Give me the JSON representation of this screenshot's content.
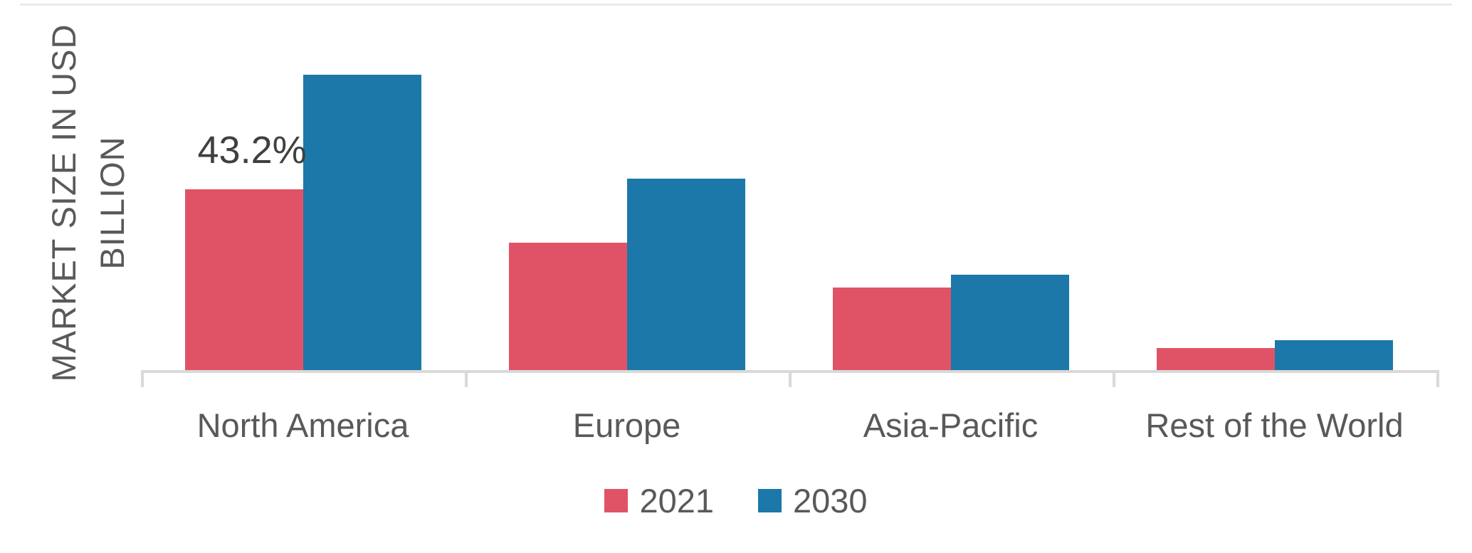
{
  "chart": {
    "y_axis_label_lines": [
      "MARKET SIZE IN USD",
      "BILLION"
    ]
  },
  "chart_data": {
    "type": "bar",
    "title": "",
    "xlabel": "",
    "ylabel": "MARKET SIZE IN USD BILLION",
    "categories": [
      "North America",
      "Europe",
      "Asia-Pacific",
      "Rest of the World"
    ],
    "series": [
      {
        "name": "2021",
        "color": "#e05366",
        "values": [
          61.6,
          43.7,
          28.6,
          8.4
        ]
      },
      {
        "name": "2030",
        "color": "#1b78a8",
        "values": [
          100.0,
          65.2,
          32.9,
          11.0
        ]
      }
    ],
    "value_units": "relative height (no numeric y-axis ticks shown; normalized so North America 2030 = 100)",
    "ylim": [
      0,
      100
    ],
    "grid": false,
    "legend_position": "bottom-center",
    "axis_color": "#d9d9d9",
    "label_color": "#595959",
    "annotations": [
      {
        "text": "43.2%",
        "category": "North America",
        "series": "2021",
        "position": "above-bar"
      }
    ]
  }
}
